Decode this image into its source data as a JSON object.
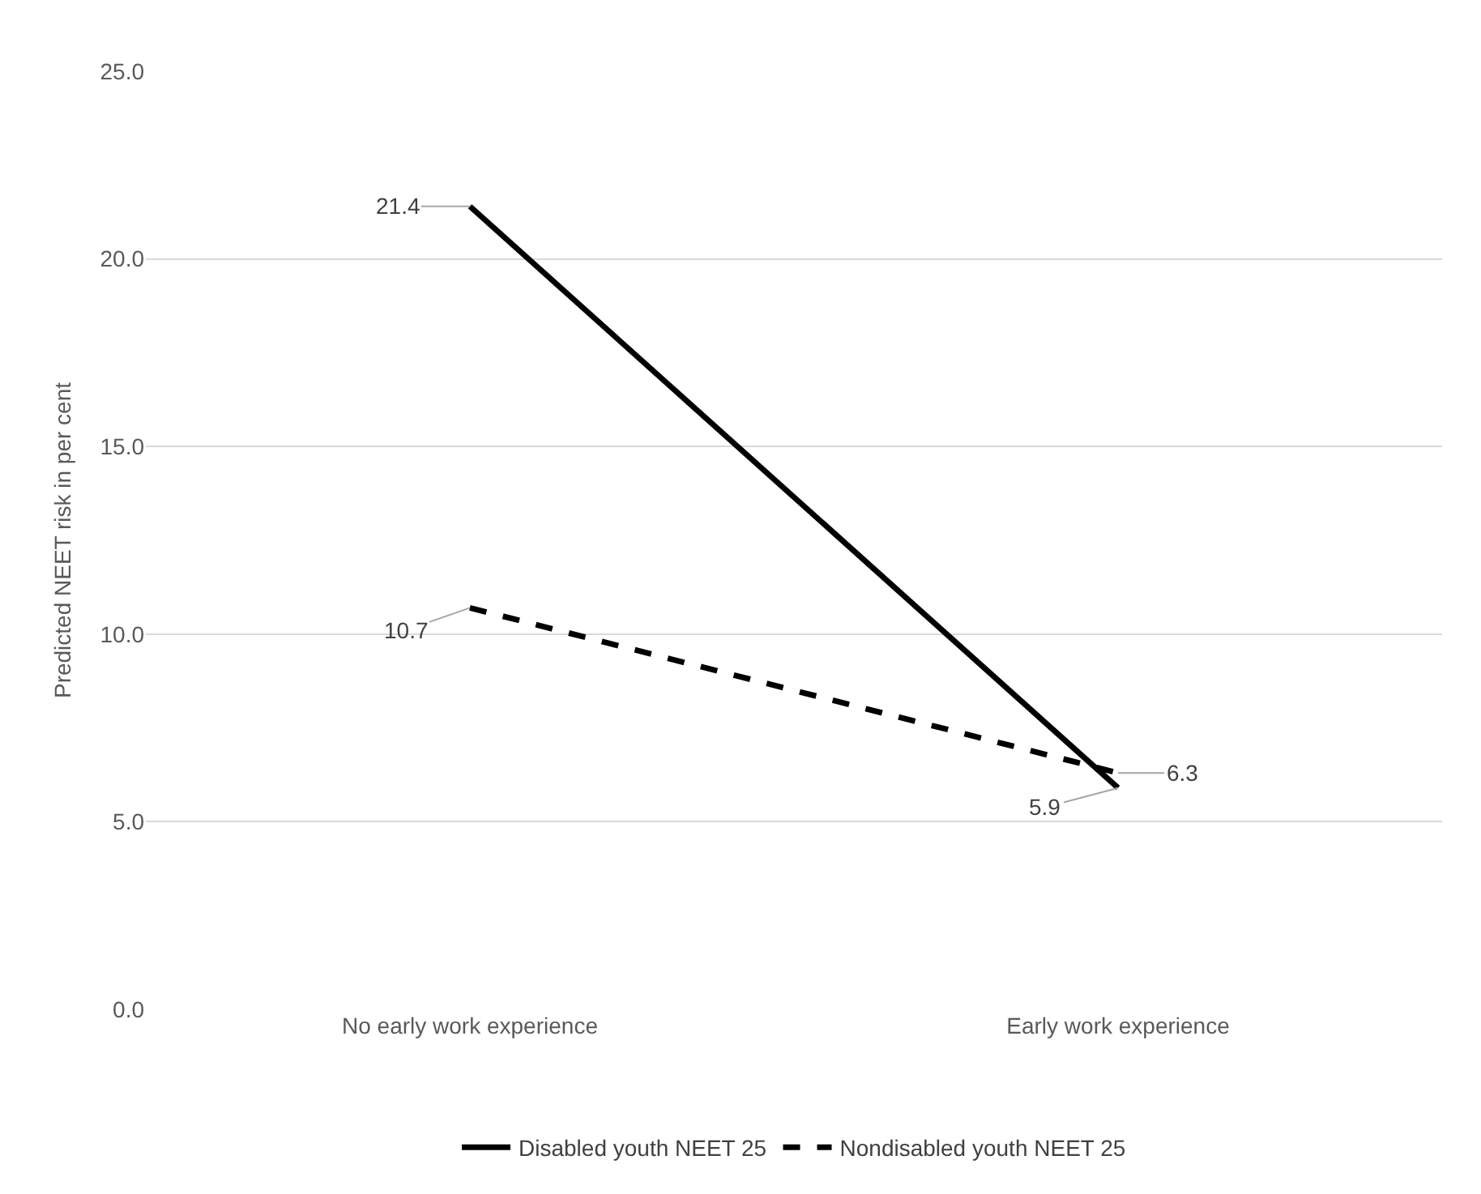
{
  "chart_data": {
    "type": "line",
    "ylabel": "Predicted NEET risk in per cent",
    "categories": [
      "No early work experience",
      "Early work experience"
    ],
    "series": [
      {
        "name": "Disabled youth NEET 25",
        "color": "#000000",
        "line_style": "solid",
        "values": [
          21.4,
          5.9
        ]
      },
      {
        "name": "Nondisabled youth NEET 25",
        "color": "#000000",
        "line_style": "dashed",
        "values": [
          10.7,
          6.3
        ]
      }
    ],
    "ylim": [
      0,
      25
    ],
    "yticks": [
      {
        "value": 0,
        "label": "0.0"
      },
      {
        "value": 5,
        "label": "5.0"
      },
      {
        "value": 10,
        "label": "10.0"
      },
      {
        "value": 15,
        "label": "15.0"
      },
      {
        "value": 20,
        "label": "20.0"
      },
      {
        "value": 25,
        "label": "25.0"
      }
    ],
    "grid": "y",
    "legend": "bottom",
    "marker": "none",
    "data_labels": true
  }
}
